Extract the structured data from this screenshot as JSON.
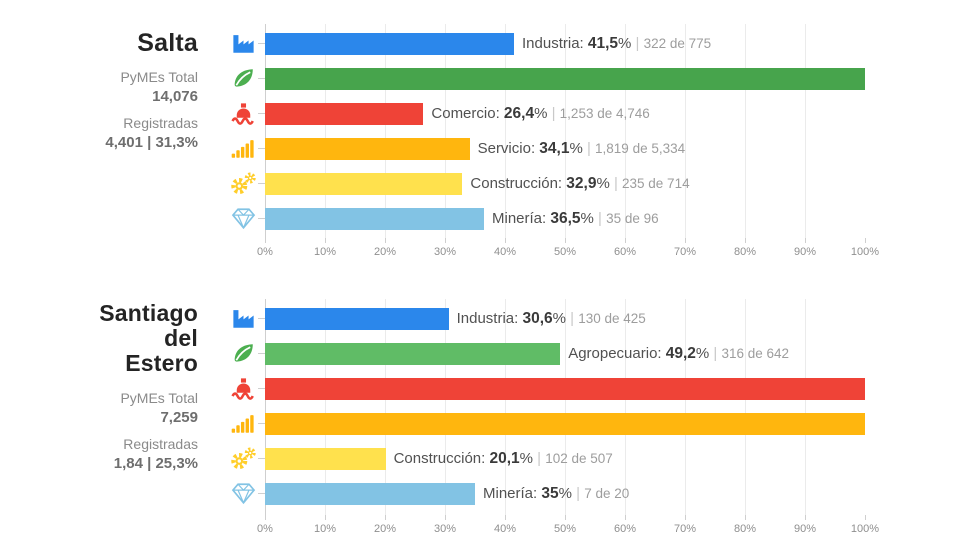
{
  "background": "#ffffff",
  "chart_data": [
    {
      "type": "bar",
      "orientation": "horizontal",
      "title": "Salta",
      "title_lines": [
        "Salta"
      ],
      "sidebar": {
        "pymes_total_label": "PyMEs Total",
        "pymes_total_value": "14,076",
        "registradas_label": "Registradas",
        "registradas_value": "4,401 | 31,3%"
      },
      "xlim": [
        0,
        100
      ],
      "grid": true,
      "x_ticks": [
        "0%",
        "10%",
        "20%",
        "30%",
        "40%",
        "50%",
        "60%",
        "70%",
        "80%",
        "90%",
        "100%"
      ],
      "rows": [
        {
          "category": "Industria",
          "icon": "factory-icon",
          "icon_color": "#2B87EB",
          "color": "#2B87EB",
          "value": 41.5,
          "value_label": "41,5",
          "detail": "322 de 775",
          "labeled": true
        },
        {
          "category": "Agropecuario",
          "icon": "leaf-icon",
          "icon_color": "#4CAF50",
          "color": "#47A44C",
          "value": 100,
          "value_label": "",
          "detail": "",
          "labeled": false
        },
        {
          "category": "Comercio",
          "icon": "ship-icon",
          "icon_color": "#EF4337",
          "color": "#EF4337",
          "value": 26.4,
          "value_label": "26,4",
          "detail": "1,253 de 4,746",
          "labeled": true
        },
        {
          "category": "Servicio",
          "icon": "signal-bars-icon",
          "icon_color": "#FFB60E",
          "color": "#FFB60E",
          "value": 34.1,
          "value_label": "34,1",
          "detail": "1,819 de 5,334",
          "labeled": true
        },
        {
          "category": "Construcción",
          "icon": "gears-icon",
          "icon_color": "#FFCE2B",
          "color": "#FFE14D",
          "value": 32.9,
          "value_label": "32,9",
          "detail": "235 de 714",
          "labeled": true
        },
        {
          "category": "Minería",
          "icon": "diamond-icon",
          "icon_color": "#82C3E4",
          "color": "#82C3E4",
          "value": 36.5,
          "value_label": "36,5",
          "detail": "35 de 96",
          "labeled": true
        }
      ]
    },
    {
      "type": "bar",
      "orientation": "horizontal",
      "title": "Santiago del Estero",
      "title_lines": [
        "Santiago",
        "del",
        "Estero"
      ],
      "sidebar": {
        "pymes_total_label": "PyMEs Total",
        "pymes_total_value": "7,259",
        "registradas_label": "Registradas",
        "registradas_value": "1,84 | 25,3%"
      },
      "xlim": [
        0,
        100
      ],
      "grid": true,
      "x_ticks": [
        "0%",
        "10%",
        "20%",
        "30%",
        "40%",
        "50%",
        "60%",
        "70%",
        "80%",
        "90%",
        "100%"
      ],
      "rows": [
        {
          "category": "Industria",
          "icon": "factory-icon",
          "icon_color": "#2B87EB",
          "color": "#2B87EB",
          "value": 30.6,
          "value_label": "30,6",
          "detail": "130 de 425",
          "labeled": true
        },
        {
          "category": "Agropecuario",
          "icon": "leaf-icon",
          "icon_color": "#4CAF50",
          "color": "#60BC66",
          "value": 49.2,
          "value_label": "49,2",
          "detail": "316 de 642",
          "labeled": true
        },
        {
          "category": "Comercio",
          "icon": "ship-icon",
          "icon_color": "#EF4337",
          "color": "#EF4337",
          "value": 100,
          "value_label": "",
          "detail": "",
          "labeled": false
        },
        {
          "category": "Servicio",
          "icon": "signal-bars-icon",
          "icon_color": "#FFB60E",
          "color": "#FFB60E",
          "value": 100,
          "value_label": "",
          "detail": "",
          "labeled": false
        },
        {
          "category": "Construcción",
          "icon": "gears-icon",
          "icon_color": "#FFCE2B",
          "color": "#FFE14D",
          "value": 20.1,
          "value_label": "20,1",
          "detail": "102 de 507",
          "labeled": true
        },
        {
          "category": "Minería",
          "icon": "diamond-icon",
          "icon_color": "#82C3E4",
          "color": "#82C3E4",
          "value": 35,
          "value_label": "35",
          "detail": "7 de 20",
          "labeled": true
        }
      ]
    }
  ]
}
